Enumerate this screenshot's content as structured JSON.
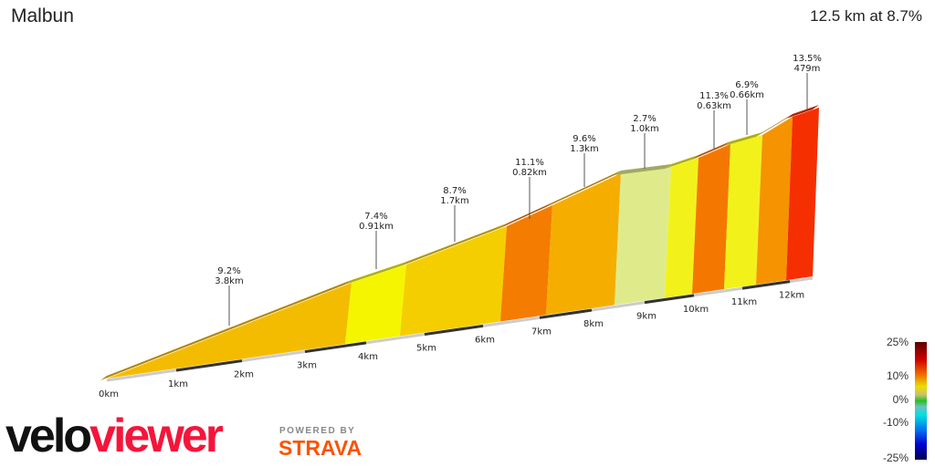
{
  "header": {
    "title": "Malbun",
    "summary": "12.5 km at 8.7%"
  },
  "chart_data": {
    "type": "area",
    "title": "Malbun",
    "subtitle": "12.5 km at 8.7%",
    "x_ticks": [
      "0km",
      "1km",
      "2km",
      "3km",
      "4km",
      "5km",
      "6km",
      "7km",
      "8km",
      "9km",
      "10km",
      "11km",
      "12km"
    ],
    "segments": [
      {
        "grade": "9.2%",
        "length": "3.8km",
        "color": "#f4bc00"
      },
      {
        "grade": "7.4%",
        "length": "0.91km",
        "color": "#f5f500"
      },
      {
        "grade": "8.7%",
        "length": "1.7km",
        "color": "#f5ce00"
      },
      {
        "grade": "11.1%",
        "length": "0.82km",
        "color": "#f47c00"
      },
      {
        "grade": "9.6%",
        "length": "1.3km",
        "color": "#f5ae00"
      },
      {
        "grade": "2.7%",
        "length": "1.0km",
        "color": "#dfeb8b"
      },
      {
        "grade": "",
        "length": "",
        "color": "#f2f21a"
      },
      {
        "grade": "11.3%",
        "length": "0.63km",
        "color": "#f47800"
      },
      {
        "grade": "6.9%",
        "length": "0.66km",
        "color": "#f2f21a"
      },
      {
        "grade": "",
        "length": "",
        "color": "#f59300"
      },
      {
        "grade": "13.5%",
        "length": "479m",
        "color": "#f52f00"
      }
    ],
    "legend": {
      "labels": [
        "25%",
        "10%",
        "0%",
        "-10%",
        "-25%"
      ],
      "placement": "bottom-right"
    }
  },
  "branding": {
    "logo_left": "velo",
    "logo_right": "viewer",
    "powered_by": "POWERED BY",
    "strava": "STRAVA"
  }
}
